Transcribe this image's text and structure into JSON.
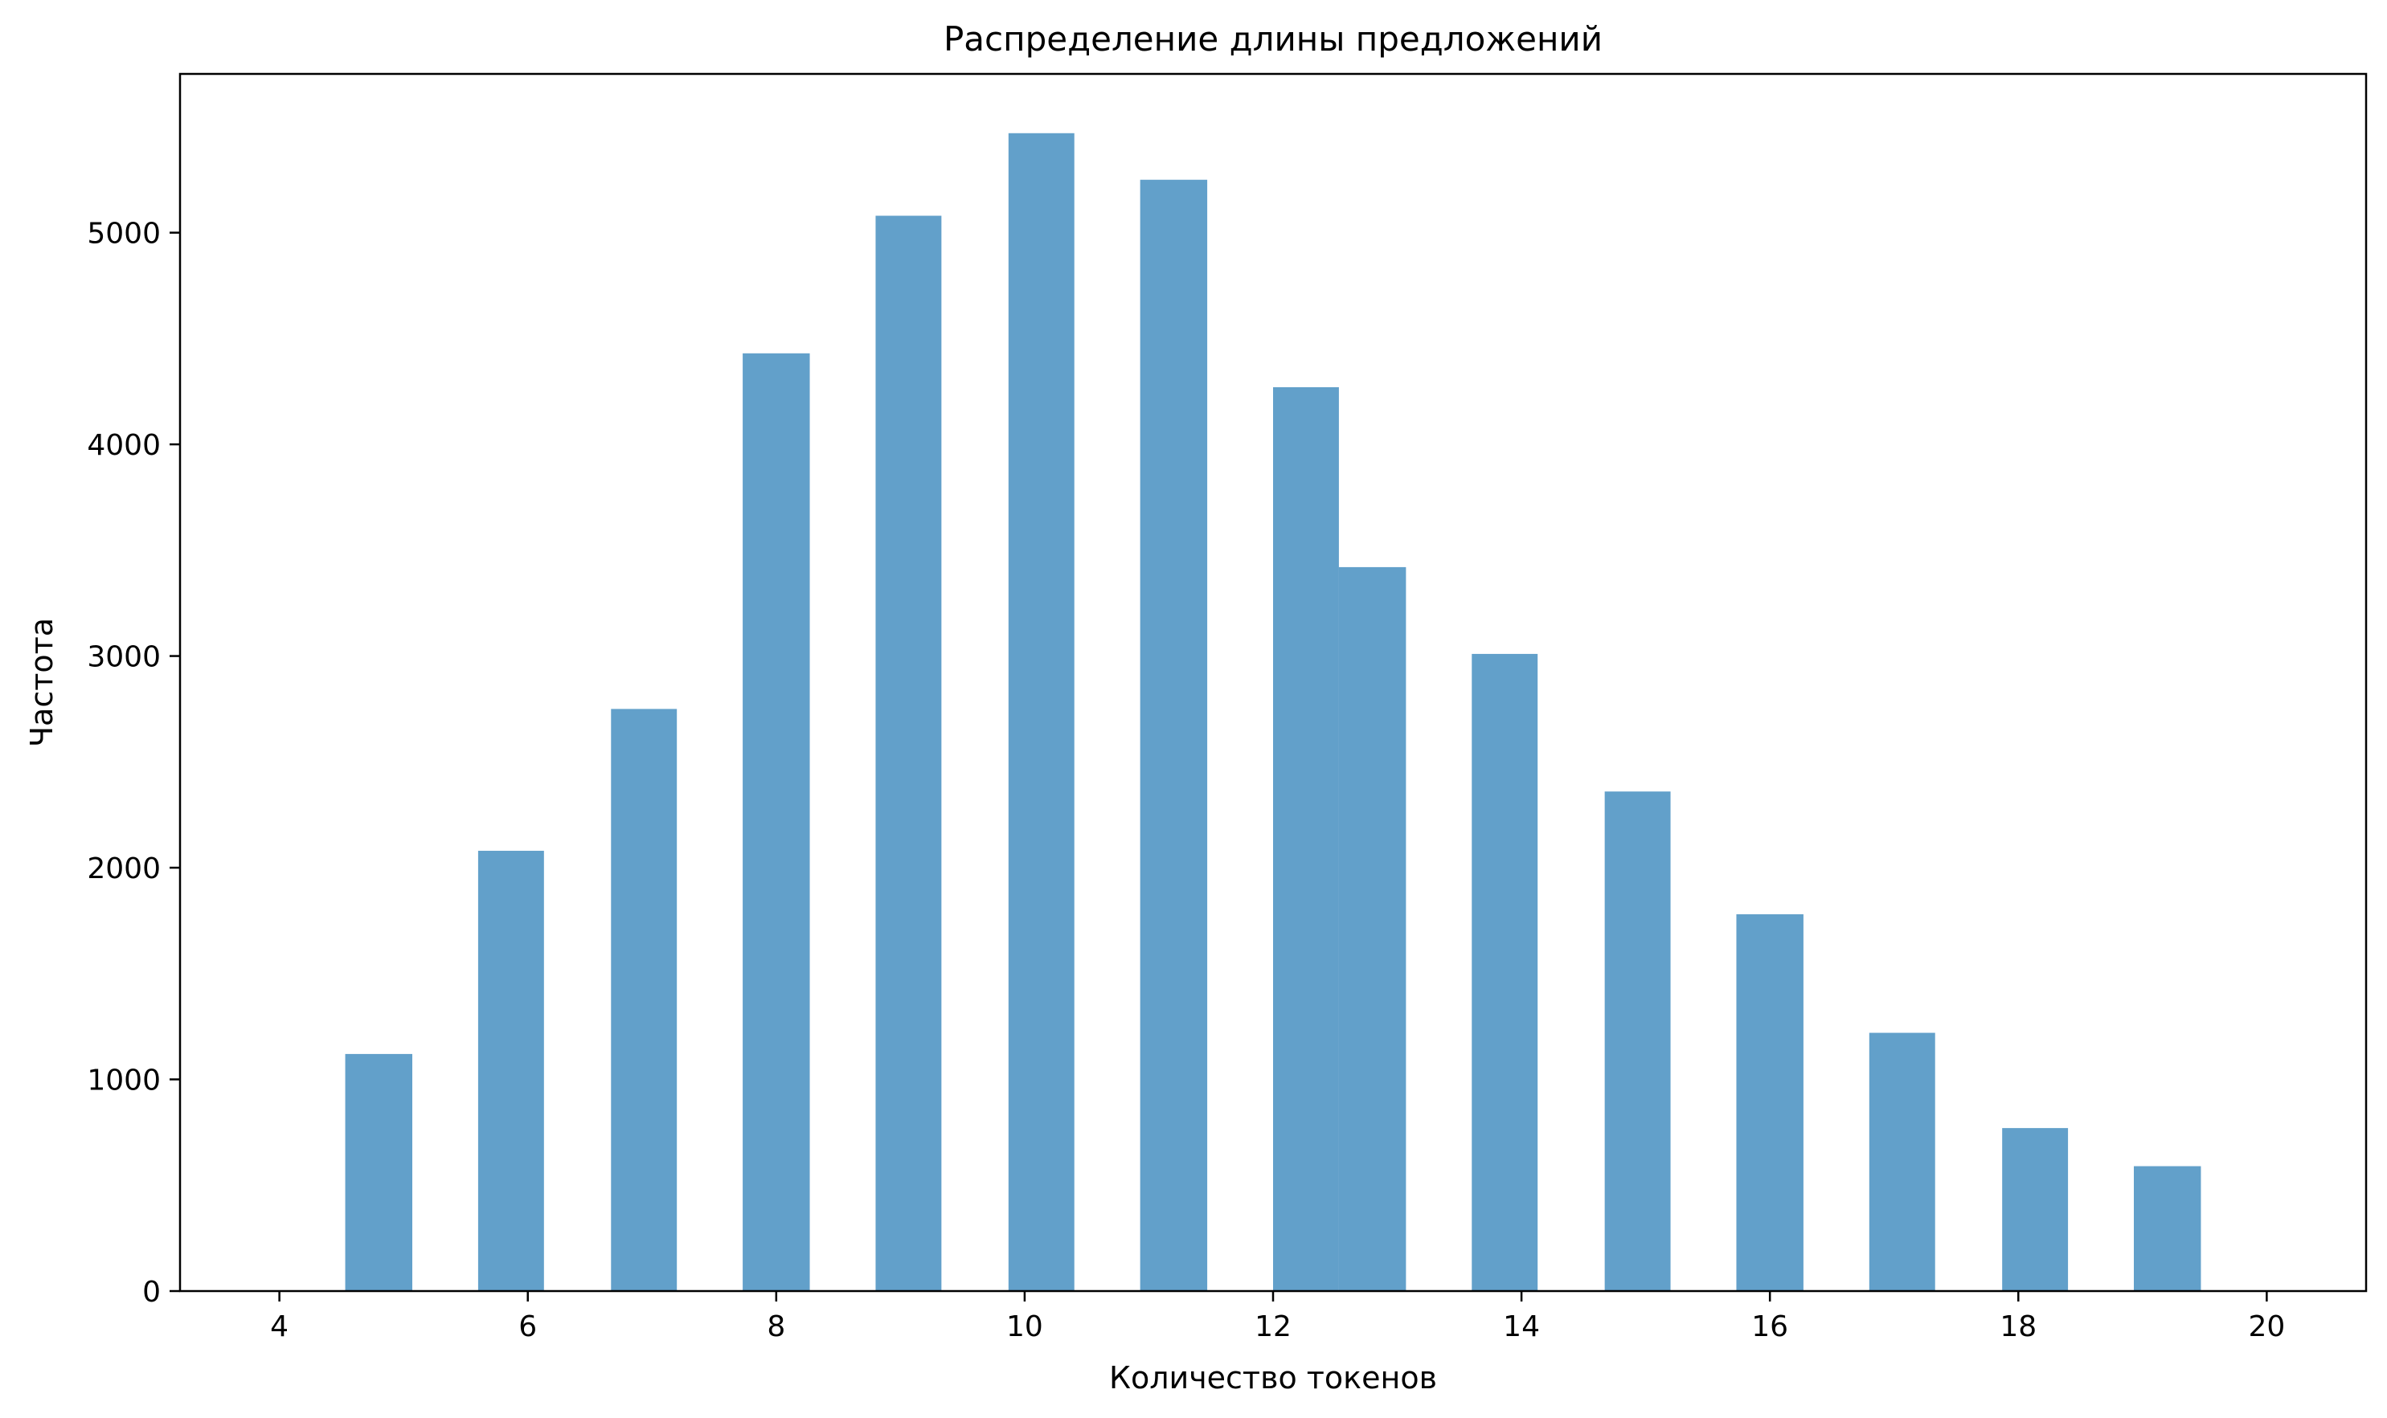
{
  "chart_data": {
    "type": "bar",
    "title": "Распределение длины предложений",
    "xlabel": "Количество токенов",
    "ylabel": "Частота",
    "xlim": [
      3.2,
      20.8
    ],
    "ylim": [
      0,
      5750
    ],
    "xticks": [
      4,
      6,
      8,
      10,
      12,
      14,
      16,
      18,
      20
    ],
    "yticks": [
      0,
      1000,
      2000,
      3000,
      4000,
      5000
    ],
    "grid": false,
    "bar_color": "#1f77b4",
    "bar_opacity": 0.7,
    "bins": [
      {
        "x0": 4.0,
        "x1": 4.53,
        "value": 0
      },
      {
        "x0": 4.53,
        "x1": 5.07,
        "value": 1120
      },
      {
        "x0": 5.07,
        "x1": 5.6,
        "value": 0
      },
      {
        "x0": 5.6,
        "x1": 6.13,
        "value": 2080
      },
      {
        "x0": 6.13,
        "x1": 6.67,
        "value": 0
      },
      {
        "x0": 6.67,
        "x1": 7.2,
        "value": 2750
      },
      {
        "x0": 7.2,
        "x1": 7.73,
        "value": 0
      },
      {
        "x0": 7.73,
        "x1": 8.27,
        "value": 4430
      },
      {
        "x0": 8.27,
        "x1": 8.8,
        "value": 0
      },
      {
        "x0": 8.8,
        "x1": 9.33,
        "value": 5080
      },
      {
        "x0": 9.33,
        "x1": 9.87,
        "value": 0
      },
      {
        "x0": 9.87,
        "x1": 10.4,
        "value": 5470
      },
      {
        "x0": 10.4,
        "x1": 10.93,
        "value": 0
      },
      {
        "x0": 10.93,
        "x1": 11.47,
        "value": 5250
      },
      {
        "x0": 11.47,
        "x1": 12.0,
        "value": 0
      },
      {
        "x0": 12.0,
        "x1": 12.53,
        "value": 4270
      },
      {
        "x0": 12.53,
        "x1": 13.07,
        "value": 3420
      },
      {
        "x0": 13.07,
        "x1": 13.6,
        "value": 0
      },
      {
        "x0": 13.6,
        "x1": 14.13,
        "value": 3010
      },
      {
        "x0": 14.13,
        "x1": 14.67,
        "value": 0
      },
      {
        "x0": 14.67,
        "x1": 15.2,
        "value": 2360
      },
      {
        "x0": 15.2,
        "x1": 15.73,
        "value": 0
      },
      {
        "x0": 15.73,
        "x1": 16.27,
        "value": 1780
      },
      {
        "x0": 16.27,
        "x1": 16.8,
        "value": 0
      },
      {
        "x0": 16.8,
        "x1": 17.33,
        "value": 1220
      },
      {
        "x0": 17.33,
        "x1": 17.87,
        "value": 0
      },
      {
        "x0": 17.87,
        "x1": 18.4,
        "value": 770
      },
      {
        "x0": 18.4,
        "x1": 18.93,
        "value": 0
      },
      {
        "x0": 18.93,
        "x1": 19.47,
        "value": 590
      },
      {
        "x0": 19.47,
        "x1": 20.0,
        "value": 0
      }
    ]
  }
}
